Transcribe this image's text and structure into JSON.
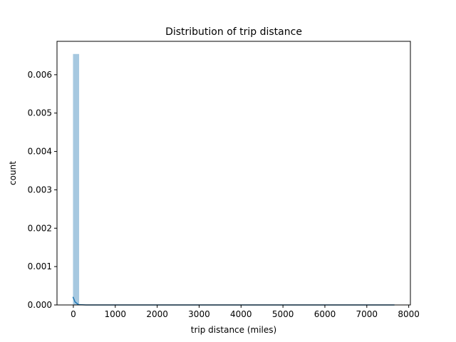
{
  "chart_data": {
    "type": "histogram",
    "title": "Distribution of trip distance",
    "xlabel": "trip distance (miles)",
    "ylabel": "count",
    "xlim": [
      -390,
      8040
    ],
    "ylim": [
      0,
      0.00687
    ],
    "x_ticks": [
      0,
      1000,
      2000,
      3000,
      4000,
      5000,
      6000,
      7000,
      8000
    ],
    "y_ticks": [
      0.0,
      0.001,
      0.002,
      0.003,
      0.004,
      0.005,
      0.006
    ],
    "y_tick_labels": [
      "0.000",
      "0.001",
      "0.002",
      "0.003",
      "0.004",
      "0.005",
      "0.006"
    ],
    "bins": [
      {
        "x0": -8,
        "x1": 138,
        "value": 0.00654
      }
    ],
    "kde": {
      "x": [
        -10,
        40,
        120,
        300,
        1000,
        2000,
        4000,
        6000,
        7660
      ],
      "y": [
        0.00021,
        8e-05,
        1e-05,
        0.0,
        0.0,
        0.0,
        0.0,
        0.0,
        0.0
      ]
    },
    "colors": {
      "bar": "#a6c8e0",
      "kde": "#1f77b4"
    },
    "grid": false
  }
}
